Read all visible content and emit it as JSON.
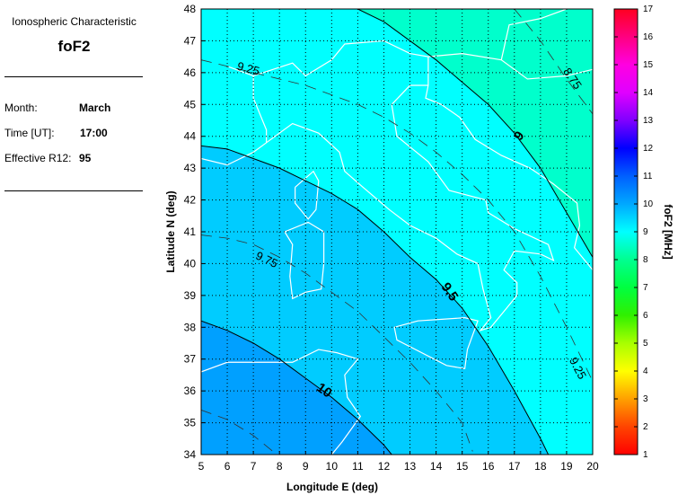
{
  "info_panel": {
    "heading": "Ionospheric Characteristic",
    "characteristic": "foF2",
    "month_label": "Month:",
    "month_value": "March",
    "time_label": "Time [UT]:",
    "time_value": "17:00",
    "r12_label": "Effective R12:",
    "r12_value": "95"
  },
  "chart_data": {
    "type": "contour",
    "xlabel": "Longitude E (deg)",
    "ylabel": "Latitude N (deg)",
    "xlim": [
      5,
      20
    ],
    "ylim": [
      34,
      48
    ],
    "xticks": [
      5,
      6,
      7,
      8,
      9,
      10,
      11,
      12,
      13,
      14,
      15,
      16,
      17,
      18,
      19,
      20
    ],
    "yticks": [
      34,
      35,
      36,
      37,
      38,
      39,
      40,
      41,
      42,
      43,
      44,
      45,
      46,
      47,
      48
    ],
    "grid": true,
    "band_colors": {
      "below_9": "#00ffcc",
      "9_to_9.5": "#00ffff",
      "9.5_to_10": "#00ccff",
      "above_10": "#00a0ff"
    },
    "contours": [
      {
        "level": 9,
        "style": "solid",
        "label": "9",
        "label_at": [
          17.2,
          44.0
        ],
        "label_angle": -55,
        "points": [
          [
            11,
            48
          ],
          [
            12,
            47.6
          ],
          [
            13,
            47.0
          ],
          [
            14,
            46.4
          ],
          [
            15,
            45.7
          ],
          [
            16,
            45.0
          ],
          [
            17,
            44.1
          ],
          [
            18,
            43.0
          ],
          [
            19,
            41.6
          ],
          [
            20,
            40.2
          ]
        ]
      },
      {
        "level": 9.5,
        "style": "solid",
        "label": "9.5",
        "label_at": [
          14.5,
          39.1
        ],
        "label_angle": 55,
        "points": [
          [
            5,
            43.7
          ],
          [
            6,
            43.6
          ],
          [
            7,
            43.3
          ],
          [
            8,
            43.0
          ],
          [
            9,
            42.6
          ],
          [
            10,
            42.2
          ],
          [
            11,
            41.7
          ],
          [
            12,
            41.0
          ],
          [
            13,
            40.2
          ],
          [
            14,
            39.5
          ],
          [
            15,
            38.6
          ],
          [
            16,
            37.4
          ],
          [
            17,
            36.0
          ],
          [
            18,
            34.5
          ],
          [
            18.3,
            34
          ]
        ]
      },
      {
        "level": 10,
        "style": "solid",
        "label": "10",
        "label_at": [
          9.7,
          36.0
        ],
        "label_angle": 35,
        "points": [
          [
            5,
            38.2
          ],
          [
            6,
            37.9
          ],
          [
            7,
            37.5
          ],
          [
            8,
            37.0
          ],
          [
            9,
            36.4
          ],
          [
            10,
            35.8
          ],
          [
            11,
            35.1
          ],
          [
            12,
            34.3
          ],
          [
            12.3,
            34
          ]
        ]
      },
      {
        "level": 8.75,
        "style": "dashed",
        "label": "8.75",
        "label_at": [
          19.2,
          45.8
        ],
        "label_angle": 55,
        "points": [
          [
            17,
            48
          ],
          [
            18,
            47
          ],
          [
            19,
            45.8
          ],
          [
            20,
            44.7
          ]
        ]
      },
      {
        "level": 9.25,
        "style": "dashed",
        "label": "9.25",
        "label_at": [
          6.8,
          46.1
        ],
        "label_angle": 15,
        "points": [
          [
            5,
            46.4
          ],
          [
            6,
            46.2
          ],
          [
            7,
            46.0
          ],
          [
            8,
            45.8
          ],
          [
            9,
            45.6
          ],
          [
            10,
            45.3
          ],
          [
            11,
            45.0
          ],
          [
            12,
            44.6
          ],
          [
            13,
            44.1
          ],
          [
            14,
            43.5
          ],
          [
            15,
            42.8
          ],
          [
            16,
            42.0
          ],
          [
            17,
            41.0
          ],
          [
            18,
            39.6
          ],
          [
            19,
            38.0
          ],
          [
            20,
            36.3
          ]
        ]
      },
      {
        "level": 9.25,
        "style": "dashed",
        "label": "9.25",
        "label_at": [
          19.4,
          36.7
        ],
        "label_angle": 62,
        "points": []
      },
      {
        "level": 9.75,
        "style": "dashed",
        "label": "9.75",
        "label_at": [
          7.5,
          40.1
        ],
        "label_angle": 25,
        "points": [
          [
            5,
            40.9
          ],
          [
            6,
            40.8
          ],
          [
            7,
            40.6
          ],
          [
            8,
            40.2
          ],
          [
            9,
            39.7
          ],
          [
            10,
            39.1
          ],
          [
            11,
            38.5
          ],
          [
            12,
            37.7
          ],
          [
            13,
            36.9
          ],
          [
            14,
            36.0
          ],
          [
            15,
            35.0
          ],
          [
            15.4,
            34.1
          ]
        ]
      },
      {
        "level": 10.25,
        "style": "dashed",
        "label": "",
        "label_at": null,
        "label_angle": 0,
        "points": [
          [
            5,
            35.4
          ],
          [
            6,
            35.1
          ],
          [
            7,
            34.6
          ],
          [
            7.9,
            34
          ]
        ]
      }
    ],
    "coastlines": [
      [
        [
          5,
          43.3
        ],
        [
          6,
          43.1
        ],
        [
          7,
          43.5
        ],
        [
          7.5,
          43.8
        ],
        [
          8.5,
          44.4
        ],
        [
          9.5,
          44.1
        ],
        [
          10.3,
          43.5
        ],
        [
          10.5,
          42.9
        ],
        [
          11.2,
          42.4
        ],
        [
          12.2,
          41.7
        ],
        [
          13,
          41.2
        ],
        [
          14,
          40.8
        ],
        [
          14.8,
          40.3
        ],
        [
          15.6,
          40.0
        ],
        [
          15.8,
          39.2
        ],
        [
          16.1,
          38.3
        ],
        [
          15.7,
          37.9
        ],
        [
          16.1,
          38.0
        ],
        [
          16.6,
          38.5
        ],
        [
          17.1,
          39.0
        ],
        [
          17.1,
          39.4
        ],
        [
          16.6,
          39.8
        ],
        [
          17.0,
          40.4
        ],
        [
          18.0,
          40.3
        ],
        [
          18.5,
          40.1
        ],
        [
          18.3,
          40.6
        ],
        [
          17.0,
          41.1
        ],
        [
          16.0,
          41.6
        ],
        [
          15.9,
          42.0
        ],
        [
          14.5,
          42.3
        ],
        [
          13.7,
          43.2
        ],
        [
          12.5,
          44.0
        ],
        [
          12.3,
          45.0
        ],
        [
          13.0,
          45.6
        ],
        [
          13.7,
          45.6
        ],
        [
          13.6,
          45.2
        ],
        [
          14.2,
          45.0
        ],
        [
          14.9,
          44.6
        ],
        [
          15.5,
          43.9
        ],
        [
          16.5,
          43.4
        ],
        [
          17.6,
          43.0
        ],
        [
          18.5,
          42.5
        ],
        [
          19.4,
          41.9
        ],
        [
          19.5,
          41.2
        ],
        [
          19.3,
          40.5
        ],
        [
          20,
          39.8
        ]
      ],
      [
        [
          12.4,
          38.0
        ],
        [
          13.3,
          38.2
        ],
        [
          15.1,
          38.3
        ],
        [
          15.6,
          38.2
        ],
        [
          15.2,
          37.3
        ],
        [
          15.1,
          36.7
        ],
        [
          14.4,
          36.8
        ],
        [
          12.5,
          37.6
        ],
        [
          12.4,
          38.0
        ]
      ],
      [
        [
          8.2,
          41.0
        ],
        [
          9.1,
          41.3
        ],
        [
          9.7,
          41.0
        ],
        [
          9.7,
          40.0
        ],
        [
          9.6,
          39.2
        ],
        [
          9.0,
          39.1
        ],
        [
          8.5,
          38.9
        ],
        [
          8.4,
          39.6
        ],
        [
          8.5,
          40.6
        ],
        [
          8.2,
          41.0
        ]
      ],
      [
        [
          8.6,
          42.4
        ],
        [
          9.3,
          42.9
        ],
        [
          9.5,
          42.6
        ],
        [
          9.4,
          41.7
        ],
        [
          9.1,
          41.4
        ],
        [
          8.6,
          41.9
        ],
        [
          8.6,
          42.4
        ]
      ],
      [
        [
          5,
          36.6
        ],
        [
          6,
          36.9
        ],
        [
          7,
          36.9
        ],
        [
          8.5,
          36.9
        ],
        [
          9.5,
          37.3
        ],
        [
          10.2,
          37.2
        ],
        [
          11.0,
          37.0
        ],
        [
          10.5,
          36.5
        ],
        [
          10.6,
          35.8
        ],
        [
          11.1,
          35.2
        ],
        [
          10.4,
          34.4
        ],
        [
          10,
          34.0
        ]
      ],
      [
        [
          7.5,
          43.8
        ],
        [
          7.5,
          44.2
        ],
        [
          7,
          45.2
        ],
        [
          7,
          45.9
        ],
        [
          6,
          46.2
        ]
      ],
      [
        [
          7,
          45.9
        ],
        [
          8.5,
          46.3
        ],
        [
          9.0,
          45.9
        ],
        [
          10.0,
          46.4
        ],
        [
          10.5,
          46.9
        ],
        [
          12.0,
          47.0
        ],
        [
          13.0,
          46.6
        ],
        [
          13.7,
          46.5
        ],
        [
          13.7,
          45.6
        ]
      ],
      [
        [
          13.7,
          46.5
        ],
        [
          15,
          46.6
        ],
        [
          16.5,
          46.4
        ],
        [
          17.5,
          45.8
        ],
        [
          19,
          45.9
        ],
        [
          20,
          46.1
        ]
      ],
      [
        [
          16.5,
          46.4
        ],
        [
          16.8,
          47.5
        ],
        [
          18,
          47.7
        ],
        [
          19,
          48
        ]
      ]
    ],
    "colorbar": {
      "label": "foF2 [MHz]",
      "range": [
        1,
        17
      ],
      "ticks": [
        1,
        2,
        3,
        4,
        5,
        6,
        7,
        8,
        9,
        10,
        11,
        12,
        13,
        14,
        15,
        16,
        17
      ],
      "colors": [
        "#ff0000",
        "#ff4400",
        "#ffa000",
        "#ffff00",
        "#a8ff00",
        "#30f000",
        "#00ff40",
        "#00ff90",
        "#00ffff",
        "#00a8ff",
        "#0060ff",
        "#0000ff",
        "#8000ff",
        "#e000ff",
        "#ff00e0",
        "#ff0080",
        "#ff0020"
      ]
    }
  }
}
